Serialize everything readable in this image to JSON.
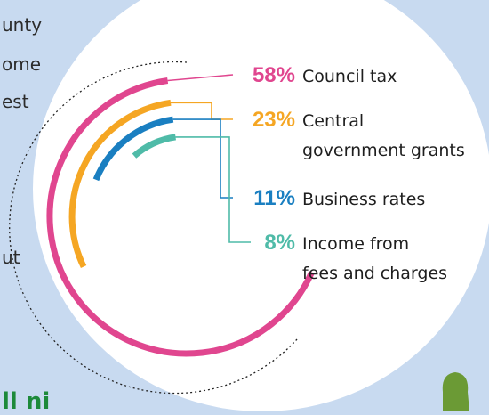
{
  "background_text": {
    "line1": "unty",
    "line2": "ome",
    "line3": "est",
    "line4": "ut",
    "bottom": "ll    ni"
  },
  "colors": {
    "background": "#c8daf0",
    "panel": "#ffffff",
    "council_tax": "#e0468f",
    "central_government_grants": "#f5a623",
    "business_rates": "#1a7fc1",
    "fees_and_charges": "#4fbba8",
    "mascot": "#6b9a35"
  },
  "chart_data": {
    "type": "radial-bar",
    "title": "",
    "unit": "%",
    "series": [
      {
        "name": "Council tax",
        "label_lines": [
          "Council tax"
        ],
        "value": 58,
        "value_label": "58%",
        "color": "#e0468f"
      },
      {
        "name": "Central government grants",
        "label_lines": [
          "Central",
          "government grants"
        ],
        "value": 23,
        "value_label": "23%",
        "color": "#f5a623"
      },
      {
        "name": "Business rates",
        "label_lines": [
          "Business rates"
        ],
        "value": 11,
        "value_label": "11%",
        "color": "#1a7fc1"
      },
      {
        "name": "Income from fees and charges",
        "label_lines": [
          "Income from",
          "fees and charges"
        ],
        "value": 8,
        "value_label": "8%",
        "color": "#4fbba8"
      }
    ]
  }
}
